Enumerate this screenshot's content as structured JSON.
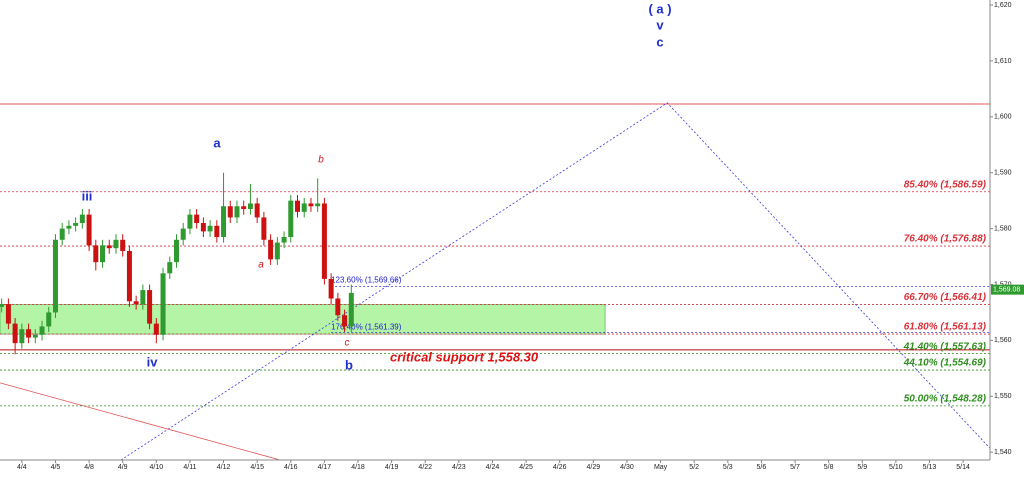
{
  "chart_data": {
    "type": "candlestick",
    "xlim": [
      -0.65,
      28.8
    ],
    "ylim": [
      1538.6,
      1620.9
    ],
    "xticks": [
      {
        "value": 0,
        "label": "4/4"
      },
      {
        "value": 1,
        "label": "4/5"
      },
      {
        "value": 2,
        "label": "4/8"
      },
      {
        "value": 3,
        "label": "4/9"
      },
      {
        "value": 4,
        "label": "4/10"
      },
      {
        "value": 5,
        "label": "4/11"
      },
      {
        "value": 6,
        "label": "4/12"
      },
      {
        "value": 7,
        "label": "4/15"
      },
      {
        "value": 8,
        "label": "4/16"
      },
      {
        "value": 9,
        "label": "4/17"
      },
      {
        "value": 10,
        "label": "4/18"
      },
      {
        "value": 11,
        "label": "4/19"
      },
      {
        "value": 12,
        "label": "4/22"
      },
      {
        "value": 13,
        "label": "4/23"
      },
      {
        "value": 14,
        "label": "4/24"
      },
      {
        "value": 15,
        "label": "4/25"
      },
      {
        "value": 16,
        "label": "4/26"
      },
      {
        "value": 17,
        "label": "4/29"
      },
      {
        "value": 18,
        "label": "4/30"
      },
      {
        "value": 19,
        "label": "May"
      },
      {
        "value": 20,
        "label": "5/2"
      },
      {
        "value": 21,
        "label": "5/3"
      },
      {
        "value": 22,
        "label": "5/6"
      },
      {
        "value": 23,
        "label": "5/7"
      },
      {
        "value": 24,
        "label": "5/8"
      },
      {
        "value": 25,
        "label": "5/9"
      },
      {
        "value": 26,
        "label": "5/10"
      },
      {
        "value": 27,
        "label": "5/13"
      },
      {
        "value": 28,
        "label": "5/14"
      }
    ],
    "yticks": [
      {
        "value": 1540,
        "label": "1,540"
      },
      {
        "value": 1550,
        "label": "1,550"
      },
      {
        "value": 1560,
        "label": "1,560"
      },
      {
        "value": 1570,
        "label": "1,570"
      },
      {
        "value": 1580,
        "label": "1,580"
      },
      {
        "value": 1590,
        "label": "1,590"
      },
      {
        "value": 1600,
        "label": "1,600"
      },
      {
        "value": 1610,
        "label": "1,610"
      },
      {
        "value": 1620,
        "label": "1,620"
      }
    ],
    "up_color": "#2f9a2f",
    "down_color": "#cc1111",
    "x": [
      -0.6,
      -0.4,
      -0.2,
      0,
      0.2,
      0.4,
      0.6,
      0.8,
      1,
      1.2,
      1.4,
      1.6,
      1.8,
      2,
      2.2,
      2.4,
      2.6,
      2.8,
      3,
      3.2,
      3.4,
      3.6,
      3.8,
      4,
      4.2,
      4.4,
      4.6,
      4.8,
      5,
      5.2,
      5.4,
      5.6,
      5.8,
      6,
      6.2,
      6.4,
      6.6,
      6.8,
      7,
      7.2,
      7.4,
      7.6,
      7.8,
      8,
      8.2,
      8.4,
      8.6,
      8.8,
      9,
      9.2,
      9.4,
      9.6,
      9.8
    ],
    "open": [
      1566,
      1566.5,
      1563,
      1559.5,
      1562,
      1560.5,
      1561,
      1562.5,
      1565,
      1578,
      1580,
      1580.5,
      1581,
      1582.5,
      1577,
      1574,
      1577,
      1576.5,
      1578,
      1576,
      1567,
      1566.5,
      1569,
      1563,
      1561,
      1572,
      1574,
      1578,
      1580,
      1582.5,
      1581,
      1579.5,
      1580.5,
      1578.5,
      1584,
      1582,
      1584,
      1583.5,
      1584.5,
      1582,
      1578,
      1574.5,
      1577.5,
      1578.5,
      1585,
      1583,
      1584.5,
      1584,
      1584.5,
      1571,
      1567.5,
      1564.5,
      1562.5
    ],
    "high": [
      1567.5,
      1567.5,
      1564,
      1563,
      1563,
      1562,
      1563.5,
      1566,
      1579,
      1581,
      1581.5,
      1582,
      1583.5,
      1583.5,
      1578,
      1578,
      1578,
      1579,
      1579,
      1577,
      1568,
      1570,
      1570,
      1564,
      1573,
      1575,
      1579,
      1581,
      1583.5,
      1583.5,
      1582,
      1581.5,
      1581.5,
      1590,
      1585,
      1585,
      1585,
      1588,
      1585.5,
      1583,
      1579,
      1578.5,
      1579.5,
      1586,
      1586,
      1585.5,
      1585.5,
      1589,
      1585.5,
      1572,
      1568.5,
      1565.5,
      1570
    ],
    "low": [
      1565,
      1562,
      1557.5,
      1558.5,
      1559.5,
      1559.5,
      1560,
      1561.5,
      1564,
      1577,
      1579,
      1579.5,
      1580,
      1576,
      1572.5,
      1573,
      1575.5,
      1575.5,
      1575,
      1566,
      1565.5,
      1565.5,
      1562,
      1559.5,
      1560,
      1571,
      1573,
      1577,
      1579,
      1580,
      1578.5,
      1578.5,
      1577.5,
      1577.5,
      1581,
      1581,
      1582.5,
      1582.5,
      1581,
      1577,
      1573.5,
      1573.5,
      1576.5,
      1577.5,
      1582,
      1582,
      1583,
      1583,
      1570,
      1566.5,
      1563.5,
      1561.5,
      1561.5
    ],
    "close": [
      1566.5,
      1563,
      1559.5,
      1562,
      1560.5,
      1561,
      1562.5,
      1565,
      1578,
      1580,
      1580.5,
      1581,
      1582.5,
      1577,
      1574,
      1577,
      1576.5,
      1578,
      1576,
      1567,
      1566.5,
      1569,
      1563,
      1561,
      1572,
      1574,
      1578,
      1580,
      1582.5,
      1581,
      1579.5,
      1580.5,
      1578.5,
      1584,
      1582,
      1584,
      1583.5,
      1584.5,
      1582,
      1578,
      1574.5,
      1577.5,
      1578.5,
      1585,
      1583,
      1584.5,
      1584,
      1584.5,
      1571,
      1567.5,
      1564.5,
      1562.5,
      1568.5
    ],
    "levels": [
      {
        "value": 1586.59,
        "label": "85.40% (1,586.59)",
        "color": "#d9303a"
      },
      {
        "value": 1576.88,
        "label": "76.40% (1,576.88)",
        "color": "#d9303a"
      },
      {
        "value": 1566.41,
        "label": "66.70% (1,566.41)",
        "color": "#d9303a"
      },
      {
        "value": 1561.13,
        "label": "61.80% (1,561.13)",
        "color": "#d9303a"
      },
      {
        "value": 1557.63,
        "label": "41.40% (1,557.63)",
        "color": "#2f8f1f"
      },
      {
        "value": 1554.69,
        "label": "44.10% (1,554.69)",
        "color": "#2f8f1f"
      },
      {
        "value": 1548.28,
        "label": "50.00% (1,548.28)",
        "color": "#2f8f1f"
      }
    ],
    "extensions": [
      {
        "value": 1569.66,
        "label": "123.60% (1,569.66)",
        "x_start": 9.2
      },
      {
        "value": 1561.39,
        "label": "176.40% (1,561.39)",
        "x_start": 9.2
      }
    ],
    "critical_support": {
      "value": 1558.3,
      "label": "critical support 1,558.30"
    },
    "resistance": 1602.3,
    "zone": {
      "x_end": 17.35
    },
    "projection": {
      "x": [
        2.95,
        19.2,
        28.8
      ],
      "y": [
        1538.6,
        1602.5,
        1540.7
      ]
    },
    "downtrend": {
      "x": [
        -0.65,
        7.68
      ],
      "y": [
        1552.4,
        1538.6
      ]
    },
    "last_price": {
      "value": 1569.08,
      "label": "1,569.08"
    },
    "annotations": [
      "( a )",
      "v",
      "c",
      "a",
      "iii",
      "iv",
      "b",
      "b",
      "a",
      "c"
    ]
  }
}
